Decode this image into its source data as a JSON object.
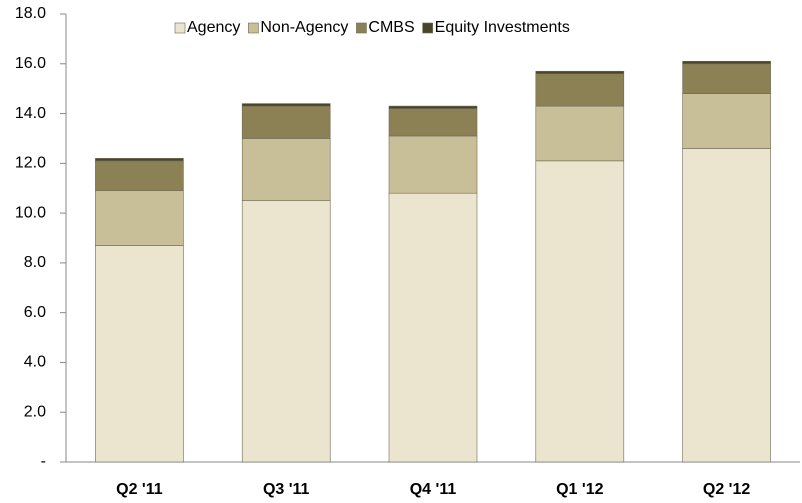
{
  "chart_data": {
    "type": "stacked_bar",
    "categories": [
      "Q2 '11",
      "Q3 '11",
      "Q4 '11",
      "Q1 '12",
      "Q2 '12"
    ],
    "series": [
      {
        "name": "Agency",
        "color": "#ebe5cf",
        "values": [
          8.7,
          10.5,
          10.8,
          12.1,
          12.6
        ]
      },
      {
        "name": "Non-Agency",
        "color": "#c8bf98",
        "values": [
          2.2,
          2.5,
          2.3,
          2.2,
          2.2
        ]
      },
      {
        "name": "CMBS",
        "color": "#8c8154",
        "values": [
          1.2,
          1.3,
          1.1,
          1.3,
          1.2
        ]
      },
      {
        "name": "Equity Investments",
        "color": "#4a4429",
        "values": [
          0.1,
          0.1,
          0.1,
          0.1,
          0.1
        ]
      }
    ],
    "ylim": [
      0,
      18
    ],
    "yticks": [
      {
        "value": 0,
        "label": "-"
      },
      {
        "value": 2,
        "label": "2.0"
      },
      {
        "value": 4,
        "label": "4.0"
      },
      {
        "value": 6,
        "label": "6.0"
      },
      {
        "value": 8,
        "label": "8.0"
      },
      {
        "value": 10,
        "label": "10.0"
      },
      {
        "value": 12,
        "label": "12.0"
      },
      {
        "value": 14,
        "label": "14.0"
      },
      {
        "value": 16,
        "label": "16.0"
      },
      {
        "value": 18,
        "label": "18.0"
      }
    ],
    "legend": "top"
  }
}
